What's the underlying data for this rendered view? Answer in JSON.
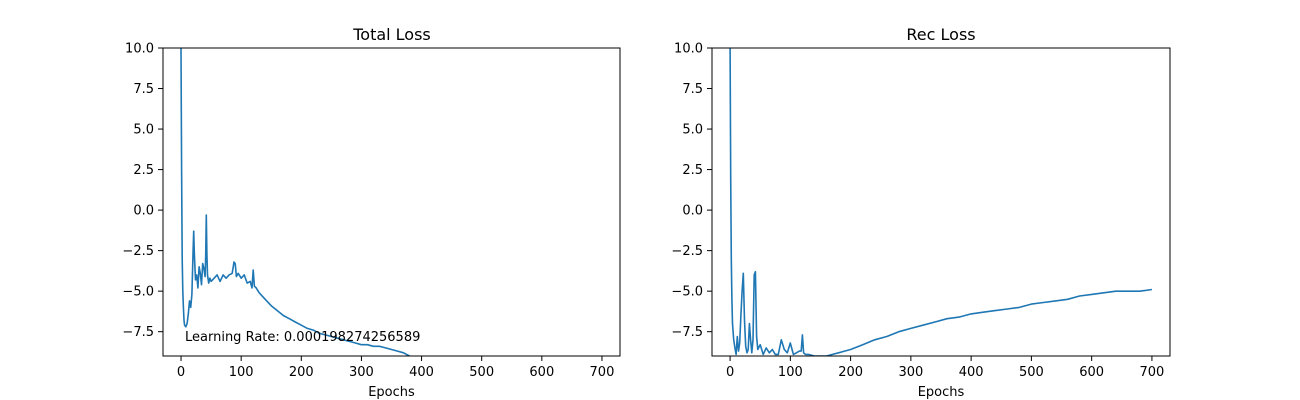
{
  "chart_data": [
    {
      "type": "line",
      "title": "Total Loss",
      "xlabel": "Epochs",
      "ylabel": "",
      "xlim": [
        -30,
        730
      ],
      "ylim": [
        -9.0,
        10.0
      ],
      "xticks": [
        0,
        100,
        200,
        300,
        400,
        500,
        600,
        700
      ],
      "yticks": [
        10.0,
        7.5,
        5.0,
        2.5,
        0.0,
        -2.5,
        -5.0,
        -7.5
      ],
      "xtick_labels": [
        "0",
        "100",
        "200",
        "300",
        "400",
        "500",
        "600",
        "700"
      ],
      "ytick_labels": [
        "10.0",
        "7.5",
        "5.0",
        "2.5",
        "0.0",
        "−2.5",
        "−5.0",
        "−7.5"
      ],
      "grid": false,
      "color": "#1f77b4",
      "annotation": "Learning Rate: 0.000198274256589",
      "series": [
        {
          "x": [
            0,
            1,
            2,
            3,
            4,
            5,
            6,
            8,
            10,
            12,
            14,
            16,
            18,
            20,
            21,
            22,
            23,
            24,
            26,
            28,
            30,
            32,
            34,
            36,
            38,
            40,
            41,
            42,
            43,
            44,
            46,
            48,
            50,
            55,
            60,
            65,
            70,
            75,
            80,
            85,
            88,
            90,
            92,
            95,
            100,
            105,
            110,
            115,
            118,
            120,
            122,
            125,
            130,
            140,
            150,
            160,
            170,
            180,
            190,
            200,
            210,
            220,
            230,
            240,
            250,
            260,
            270,
            280,
            290,
            300,
            310,
            320,
            330,
            340,
            350,
            360,
            370,
            380
          ],
          "y": [
            10.0,
            2.5,
            -3.0,
            -5.0,
            -6.0,
            -6.8,
            -7.1,
            -7.2,
            -7.0,
            -6.4,
            -5.6,
            -6.0,
            -5.2,
            -2.5,
            -1.3,
            -2.6,
            -3.5,
            -4.3,
            -4.0,
            -4.8,
            -3.5,
            -3.9,
            -4.6,
            -3.3,
            -3.6,
            -4.1,
            -2.8,
            -0.3,
            -2.7,
            -4.0,
            -4.5,
            -4.2,
            -4.4,
            -4.2,
            -4.0,
            -4.4,
            -4.0,
            -4.2,
            -4.0,
            -3.9,
            -3.2,
            -3.3,
            -4.1,
            -3.9,
            -4.2,
            -4.0,
            -4.5,
            -4.4,
            -4.8,
            -3.7,
            -4.7,
            -4.8,
            -5.1,
            -5.5,
            -5.9,
            -6.2,
            -6.5,
            -6.7,
            -6.9,
            -7.1,
            -7.3,
            -7.4,
            -7.6,
            -7.7,
            -7.8,
            -7.9,
            -8.0,
            -8.1,
            -8.2,
            -8.3,
            -8.3,
            -8.4,
            -8.4,
            -8.5,
            -8.6,
            -8.7,
            -8.8,
            -9.0
          ]
        }
      ]
    },
    {
      "type": "line",
      "title": "Rec Loss",
      "xlabel": "Epochs",
      "ylabel": "",
      "xlim": [
        -30,
        730
      ],
      "ylim": [
        -9.0,
        10.0
      ],
      "xticks": [
        0,
        100,
        200,
        300,
        400,
        500,
        600,
        700
      ],
      "yticks": [
        10.0,
        7.5,
        5.0,
        2.5,
        0.0,
        -2.5,
        -5.0,
        -7.5
      ],
      "xtick_labels": [
        "0",
        "100",
        "200",
        "300",
        "400",
        "500",
        "600",
        "700"
      ],
      "ytick_labels": [
        "10.0",
        "7.5",
        "5.0",
        "2.5",
        "0.0",
        "−2.5",
        "−5.0",
        "−7.5"
      ],
      "grid": false,
      "color": "#1f77b4",
      "series": [
        {
          "x": [
            0,
            1,
            2,
            3,
            4,
            6,
            8,
            10,
            12,
            14,
            16,
            18,
            20,
            22,
            24,
            26,
            28,
            30,
            32,
            34,
            36,
            38,
            40,
            42,
            44,
            46,
            50,
            55,
            60,
            65,
            70,
            75,
            80,
            85,
            90,
            95,
            100,
            105,
            110,
            115,
            118,
            120,
            122,
            125,
            130,
            140,
            150,
            160,
            170,
            180,
            190,
            200,
            220,
            240,
            260,
            280,
            300,
            320,
            340,
            360,
            380,
            400,
            420,
            440,
            460,
            480,
            500,
            520,
            540,
            560,
            580,
            600,
            620,
            640,
            660,
            680,
            700
          ],
          "y": [
            10.0,
            2.0,
            -3.0,
            -5.5,
            -7.0,
            -8.0,
            -8.5,
            -8.9,
            -7.8,
            -8.7,
            -8.2,
            -6.5,
            -5.0,
            -3.9,
            -6.8,
            -8.4,
            -8.8,
            -8.6,
            -7.0,
            -8.0,
            -8.8,
            -8.0,
            -4.0,
            -3.8,
            -7.8,
            -8.6,
            -8.3,
            -8.9,
            -8.5,
            -8.8,
            -8.6,
            -8.9,
            -8.9,
            -8.0,
            -8.6,
            -8.8,
            -8.2,
            -8.9,
            -8.8,
            -8.7,
            -8.7,
            -7.7,
            -8.8,
            -8.9,
            -8.9,
            -9.0,
            -9.0,
            -9.0,
            -8.9,
            -8.8,
            -8.7,
            -8.6,
            -8.3,
            -8.0,
            -7.8,
            -7.5,
            -7.3,
            -7.1,
            -6.9,
            -6.7,
            -6.6,
            -6.4,
            -6.3,
            -6.2,
            -6.1,
            -6.0,
            -5.8,
            -5.7,
            -5.6,
            -5.5,
            -5.3,
            -5.2,
            -5.1,
            -5.0,
            -5.0,
            -5.0,
            -4.9
          ]
        }
      ]
    }
  ]
}
